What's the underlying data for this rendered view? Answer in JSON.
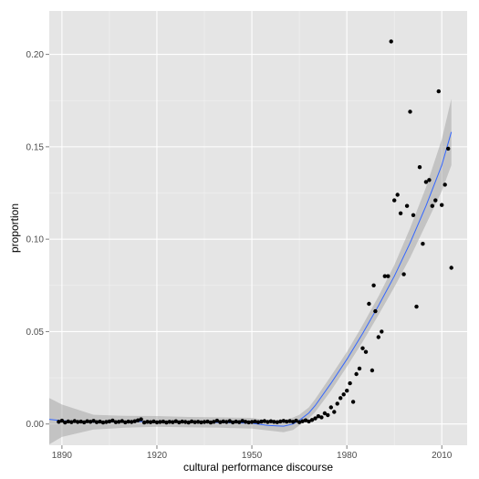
{
  "chart_data": {
    "type": "scatter",
    "title": "",
    "xlabel": "cultural performance discourse",
    "ylabel": "proportion",
    "xlim": [
      1886,
      2018
    ],
    "ylim": [
      -0.0115,
      0.2235
    ],
    "x_ticks": [
      1890,
      1920,
      1950,
      1980,
      2010
    ],
    "x_tick_labels": [
      "1890",
      "1920",
      "1950",
      "1980",
      "2010"
    ],
    "y_ticks": [
      0.0,
      0.05,
      0.1,
      0.15,
      0.2
    ],
    "y_tick_labels": [
      "0.00",
      "0.05",
      "0.10",
      "0.15",
      "0.20"
    ],
    "grid": true,
    "legend": "none",
    "colors": {
      "panel_background": "#e5e5e5",
      "grid_major": "#ffffff",
      "grid_minor": "#f2f2f2",
      "point": "#000000",
      "smooth_line": "#3366ff",
      "confidence_band": "#999999"
    },
    "series": [
      {
        "values": [
          [
            1889,
            0.0012
          ],
          [
            1890,
            0.0018
          ],
          [
            1891,
            0.0008
          ],
          [
            1892,
            0.0014
          ],
          [
            1893,
            0.001
          ],
          [
            1894,
            0.0016
          ],
          [
            1895,
            0.0011
          ],
          [
            1896,
            0.0013
          ],
          [
            1897,
            0.0009
          ],
          [
            1898,
            0.0015
          ],
          [
            1899,
            0.0012
          ],
          [
            1900,
            0.0017
          ],
          [
            1901,
            0.001
          ],
          [
            1902,
            0.0013
          ],
          [
            1903,
            0.0008
          ],
          [
            1904,
            0.0011
          ],
          [
            1905,
            0.0014
          ],
          [
            1906,
            0.0019
          ],
          [
            1907,
            0.001
          ],
          [
            1908,
            0.0012
          ],
          [
            1909,
            0.0016
          ],
          [
            1910,
            0.0009
          ],
          [
            1911,
            0.0013
          ],
          [
            1912,
            0.0011
          ],
          [
            1913,
            0.0015
          ],
          [
            1914,
            0.002
          ],
          [
            1915,
            0.0025
          ],
          [
            1916,
            0.0008
          ],
          [
            1917,
            0.0012
          ],
          [
            1918,
            0.001
          ],
          [
            1919,
            0.0014
          ],
          [
            1920,
            0.0009
          ],
          [
            1921,
            0.0011
          ],
          [
            1922,
            0.0013
          ],
          [
            1923,
            0.0008
          ],
          [
            1924,
            0.0012
          ],
          [
            1925,
            0.001
          ],
          [
            1926,
            0.0015
          ],
          [
            1927,
            0.0009
          ],
          [
            1928,
            0.0013
          ],
          [
            1929,
            0.0011
          ],
          [
            1930,
            0.0008
          ],
          [
            1931,
            0.0014
          ],
          [
            1932,
            0.001
          ],
          [
            1933,
            0.0012
          ],
          [
            1934,
            0.0009
          ],
          [
            1935,
            0.0011
          ],
          [
            1936,
            0.0013
          ],
          [
            1937,
            0.0008
          ],
          [
            1938,
            0.0012
          ],
          [
            1939,
            0.0018
          ],
          [
            1940,
            0.001
          ],
          [
            1941,
            0.0014
          ],
          [
            1942,
            0.0011
          ],
          [
            1943,
            0.0016
          ],
          [
            1944,
            0.0009
          ],
          [
            1945,
            0.0013
          ],
          [
            1946,
            0.001
          ],
          [
            1947,
            0.0017
          ],
          [
            1948,
            0.0012
          ],
          [
            1949,
            0.0009
          ],
          [
            1950,
            0.0011
          ],
          [
            1951,
            0.0014
          ],
          [
            1952,
            0.001
          ],
          [
            1953,
            0.0013
          ],
          [
            1954,
            0.0016
          ],
          [
            1955,
            0.0011
          ],
          [
            1956,
            0.0015
          ],
          [
            1957,
            0.0012
          ],
          [
            1958,
            0.001
          ],
          [
            1959,
            0.0014
          ],
          [
            1960,
            0.0017
          ],
          [
            1961,
            0.0013
          ],
          [
            1962,
            0.0016
          ],
          [
            1963,
            0.0012
          ],
          [
            1964,
            0.0018
          ],
          [
            1965,
            0.001
          ],
          [
            1966,
            0.0015
          ],
          [
            1967,
            0.002
          ],
          [
            1968,
            0.0014
          ],
          [
            1969,
            0.0022
          ],
          [
            1970,
            0.003
          ],
          [
            1971,
            0.0042
          ],
          [
            1972,
            0.0036
          ],
          [
            1973,
            0.0058
          ],
          [
            1974,
            0.0048
          ],
          [
            1975,
            0.009
          ],
          [
            1976,
            0.0065
          ],
          [
            1977,
            0.011
          ],
          [
            1978,
            0.014
          ],
          [
            1979,
            0.016
          ],
          [
            1980,
            0.018
          ],
          [
            1981,
            0.022
          ],
          [
            1982,
            0.012
          ],
          [
            1983,
            0.027
          ],
          [
            1984,
            0.03
          ],
          [
            1985,
            0.041
          ],
          [
            1986,
            0.039
          ],
          [
            1987,
            0.065
          ],
          [
            1988,
            0.029
          ],
          [
            1988.5,
            0.075
          ],
          [
            1989,
            0.061
          ],
          [
            1990,
            0.047
          ],
          [
            1991,
            0.05
          ],
          [
            1992,
            0.08
          ],
          [
            1993,
            0.08
          ],
          [
            1994,
            0.207
          ],
          [
            1995,
            0.121
          ],
          [
            1996,
            0.124
          ],
          [
            1997,
            0.114
          ],
          [
            1998,
            0.081
          ],
          [
            1999,
            0.118
          ],
          [
            2000,
            0.169
          ],
          [
            2001,
            0.113
          ],
          [
            2002,
            0.0635
          ],
          [
            2003,
            0.139
          ],
          [
            2004,
            0.0975
          ],
          [
            2005,
            0.131
          ],
          [
            2006,
            0.132
          ],
          [
            2007,
            0.118
          ],
          [
            2008,
            0.121
          ],
          [
            2009,
            0.18
          ],
          [
            2010,
            0.1185
          ],
          [
            2011,
            0.1295
          ],
          [
            2012,
            0.149
          ],
          [
            2013,
            0.0845
          ]
        ]
      }
    ],
    "smooth": {
      "x": [
        1886,
        1890,
        1900,
        1910,
        1920,
        1930,
        1940,
        1950,
        1955,
        1960,
        1963,
        1965,
        1968,
        1970,
        1975,
        1980,
        1985,
        1990,
        1995,
        2000,
        2005,
        2010,
        2013
      ],
      "y": [
        0.0025,
        0.0018,
        0.001,
        0.0012,
        0.0014,
        0.001,
        0.0008,
        0.0004,
        -0.0008,
        -0.0012,
        0.0,
        0.002,
        0.006,
        0.01,
        0.022,
        0.035,
        0.049,
        0.064,
        0.08,
        0.098,
        0.118,
        0.14,
        0.158
      ],
      "lower": [
        -0.011,
        -0.007,
        -0.003,
        -0.002,
        -0.0015,
        -0.0018,
        -0.002,
        -0.0025,
        -0.0035,
        -0.0045,
        -0.0032,
        -0.0008,
        0.003,
        0.0065,
        0.018,
        0.031,
        0.0445,
        0.059,
        0.074,
        0.09,
        0.108,
        0.126,
        0.14
      ],
      "upper": [
        0.014,
        0.0105,
        0.005,
        0.0044,
        0.0043,
        0.0038,
        0.0036,
        0.0033,
        0.002,
        0.0018,
        0.0035,
        0.005,
        0.009,
        0.0135,
        0.026,
        0.039,
        0.0535,
        0.069,
        0.086,
        0.106,
        0.128,
        0.154,
        0.176
      ]
    }
  }
}
